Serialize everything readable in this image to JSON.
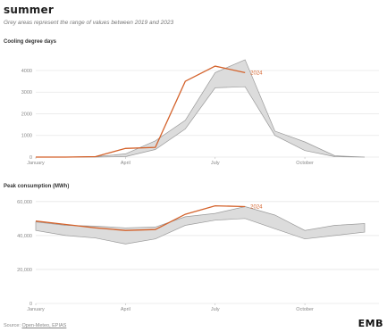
{
  "header": {
    "title": "summer",
    "subtitle": "Grey areas represent the range of values between 2019 and 2023"
  },
  "footer": {
    "source_label": "Source:",
    "source_links": "Open-Meteo, EPIAS",
    "logo_text": "EMB"
  },
  "colors": {
    "highlight": "#d4622b",
    "band": "#dcdcdc",
    "band_stroke": "#9a9a9a",
    "grid": "#e6e6e6"
  },
  "chart_data": [
    {
      "type": "area",
      "title": "Cooling degree days",
      "x": [
        "Jan",
        "Feb",
        "Mar",
        "Apr",
        "May",
        "Jun",
        "Jul",
        "Aug",
        "Sep",
        "Oct",
        "Nov",
        "Dec"
      ],
      "xticks": [
        {
          "label": "January",
          "month": 1
        },
        {
          "label": "April",
          "month": 4
        },
        {
          "label": "July",
          "month": 7
        },
        {
          "label": "October",
          "month": 10
        }
      ],
      "yticks": [
        0,
        1000,
        2000,
        3000,
        4000
      ],
      "ylim": [
        0,
        4700
      ],
      "grid": true,
      "band": {
        "name": "2019–2023 range",
        "low": [
          0,
          0,
          0,
          20,
          350,
          1300,
          3200,
          3250,
          1000,
          300,
          20,
          0
        ],
        "high": [
          0,
          0,
          20,
          150,
          750,
          1700,
          3900,
          4500,
          1200,
          700,
          60,
          0
        ]
      },
      "series": [
        {
          "name": "2024",
          "x": [
            1,
            2,
            3,
            4,
            5,
            6,
            7,
            8
          ],
          "values": [
            0,
            0,
            20,
            400,
            450,
            3500,
            4200,
            3900
          ]
        }
      ]
    },
    {
      "type": "area",
      "title": "Peak consumption (MWh)",
      "x": [
        "Jan",
        "Feb",
        "Mar",
        "Apr",
        "May",
        "Jun",
        "Jul",
        "Aug",
        "Sep",
        "Oct",
        "Nov",
        "Dec"
      ],
      "xticks": [
        {
          "label": "January",
          "month": 1
        },
        {
          "label": "April",
          "month": 4
        },
        {
          "label": "July",
          "month": 7
        },
        {
          "label": "October",
          "month": 10
        }
      ],
      "yticks": [
        {
          "value": 0,
          "label": "0"
        },
        {
          "value": 20000,
          "label": "20,000"
        },
        {
          "value": 40000,
          "label": "40,000"
        },
        {
          "value": 60000,
          "label": "60,000"
        }
      ],
      "ylim": [
        0,
        62000
      ],
      "grid": true,
      "band": {
        "name": "2019–2023 range",
        "low": [
          43000,
          40000,
          38500,
          35000,
          38000,
          46000,
          49000,
          50000,
          44000,
          38000,
          40000,
          42000
        ],
        "high": [
          48000,
          46000,
          45500,
          44500,
          45000,
          51000,
          53000,
          57000,
          52000,
          43000,
          46000,
          47000
        ]
      },
      "series": [
        {
          "name": "2024",
          "x": [
            1,
            2,
            3,
            4,
            5,
            6,
            7,
            8
          ],
          "values": [
            48500,
            46500,
            44500,
            43000,
            43500,
            52500,
            57500,
            57000
          ]
        }
      ]
    }
  ]
}
